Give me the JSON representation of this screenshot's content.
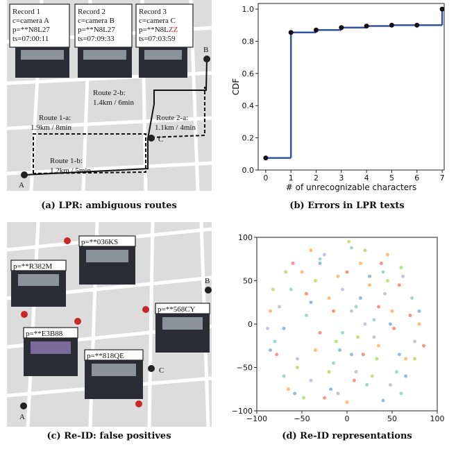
{
  "panel_a": {
    "records": [
      {
        "title": "Record 1",
        "camera": "c=camera A",
        "plate": "p=**N8L27",
        "ts": "ts=07:00:11"
      },
      {
        "title": "Record 2",
        "camera": "c=camera B",
        "plate": "p=**N8L27",
        "ts": "ts=07:09:33"
      },
      {
        "title": "Record 3",
        "camera": "c=camera C",
        "plate": "p=**N8L",
        "plate_error": "ZZ",
        "ts": "ts=07:03:59"
      }
    ],
    "routes": [
      {
        "name": "Route 2-b:",
        "info": "1.4km / 6min"
      },
      {
        "name": "Route 1-a:",
        "info": "1.9km / 8min"
      },
      {
        "name": "Route 2-a:",
        "info": "1.1km / 4min"
      },
      {
        "name": "Route 1-b:",
        "info": "1.2km / 5min"
      }
    ],
    "points": [
      "A",
      "B",
      "C"
    ],
    "caption": "(a) LPR: ambiguous routes"
  },
  "panel_c": {
    "plates": [
      "p=**036KS",
      "p=**R382M",
      "p=**568CY",
      "p=**E3B88",
      "p=**818QE"
    ],
    "points": [
      "A",
      "B",
      "C"
    ],
    "caption": "(c) Re-ID: false positives"
  },
  "chart_data": [
    {
      "type": "line",
      "caption": "(b) Errors in LPR texts",
      "xlabel": "# of unrecognizable characters",
      "ylabel": "CDF",
      "x": [
        0,
        1,
        2,
        3,
        4,
        5,
        6,
        7
      ],
      "series": [
        {
          "color": "#3352a4",
          "values": [
            0.075,
            0.855,
            0.87,
            0.885,
            0.895,
            0.9,
            0.9,
            1.0
          ]
        }
      ],
      "xlim": [
        -0.3,
        7.08
      ],
      "ylim": [
        0,
        1.035
      ],
      "xticks": [
        0,
        1,
        2,
        3,
        4,
        5,
        6,
        7
      ],
      "yticks": [
        {
          "value": 0,
          "label": "0.0"
        },
        {
          "value": 0.2,
          "label": "0.2"
        },
        {
          "value": 0.4,
          "label": "0.4"
        },
        {
          "value": 0.6,
          "label": "0.6"
        },
        {
          "value": 0.8,
          "label": "0.8"
        },
        {
          "value": 1,
          "label": "1.0"
        }
      ]
    },
    {
      "type": "scatter",
      "caption": "(d) Re-ID representations",
      "xlim": [
        -100,
        100
      ],
      "ylim": [
        -100,
        100
      ],
      "xticks": [
        {
          "value": -100,
          "label": "−100"
        },
        {
          "value": -50,
          "label": "−50"
        },
        0,
        50,
        100
      ],
      "yticks": [
        {
          "value": -100,
          "label": "−100"
        },
        {
          "value": -50,
          "label": "−50"
        },
        0,
        50,
        100
      ],
      "series": [
        {
          "color": "#8dd3c7",
          "x": [
            -62,
            -30,
            5,
            40,
            72,
            -80,
            -15,
            22,
            55,
            -45,
            10,
            -5,
            30,
            -70,
            60
          ],
          "y": [
            40,
            75,
            88,
            60,
            30,
            -20,
            -45,
            -70,
            -55,
            10,
            20,
            -10,
            5,
            -60,
            -80
          ]
        },
        {
          "color": "#fdb462",
          "x": [
            -50,
            -20,
            15,
            45,
            80,
            -85,
            -35,
            0,
            35,
            65,
            -65,
            25,
            -10,
            50,
            -40
          ],
          "y": [
            60,
            30,
            70,
            80,
            0,
            15,
            -30,
            -90,
            -25,
            -40,
            -75,
            45,
            55,
            15,
            85
          ]
        },
        {
          "color": "#bebada",
          "x": [
            -75,
            -40,
            -5,
            30,
            62,
            -55,
            -25,
            10,
            42,
            75,
            -10,
            20,
            -88,
            5,
            48
          ],
          "y": [
            20,
            -65,
            40,
            -15,
            55,
            -40,
            80,
            -55,
            35,
            -20,
            -80,
            0,
            -5,
            15,
            -70
          ]
        },
        {
          "color": "#fb8072",
          "x": [
            -30,
            0,
            35,
            70,
            -60,
            -45,
            18,
            -15,
            52,
            85,
            -78,
            38,
            -25,
            8,
            58
          ],
          "y": [
            -10,
            60,
            20,
            10,
            70,
            35,
            -35,
            15,
            -5,
            -25,
            -35,
            70,
            -85,
            -65,
            45
          ]
        },
        {
          "color": "#b3de69",
          "x": [
            -55,
            -12,
            28,
            60,
            -82,
            -35,
            12,
            45,
            -68,
            2,
            33,
            -20,
            75,
            -48,
            20
          ],
          "y": [
            -50,
            -20,
            -60,
            65,
            40,
            50,
            -15,
            50,
            60,
            95,
            -40,
            -55,
            -40,
            -85,
            85
          ]
        },
        {
          "color": "#80b1d3",
          "x": [
            -40,
            -8,
            25,
            58,
            -70,
            -18,
            15,
            48,
            80,
            -58,
            40,
            -30,
            5,
            65,
            -85
          ],
          "y": [
            25,
            -30,
            55,
            -35,
            -5,
            -75,
            30,
            0,
            15,
            -80,
            -88,
            70,
            -35,
            -60,
            -30
          ]
        }
      ]
    }
  ]
}
